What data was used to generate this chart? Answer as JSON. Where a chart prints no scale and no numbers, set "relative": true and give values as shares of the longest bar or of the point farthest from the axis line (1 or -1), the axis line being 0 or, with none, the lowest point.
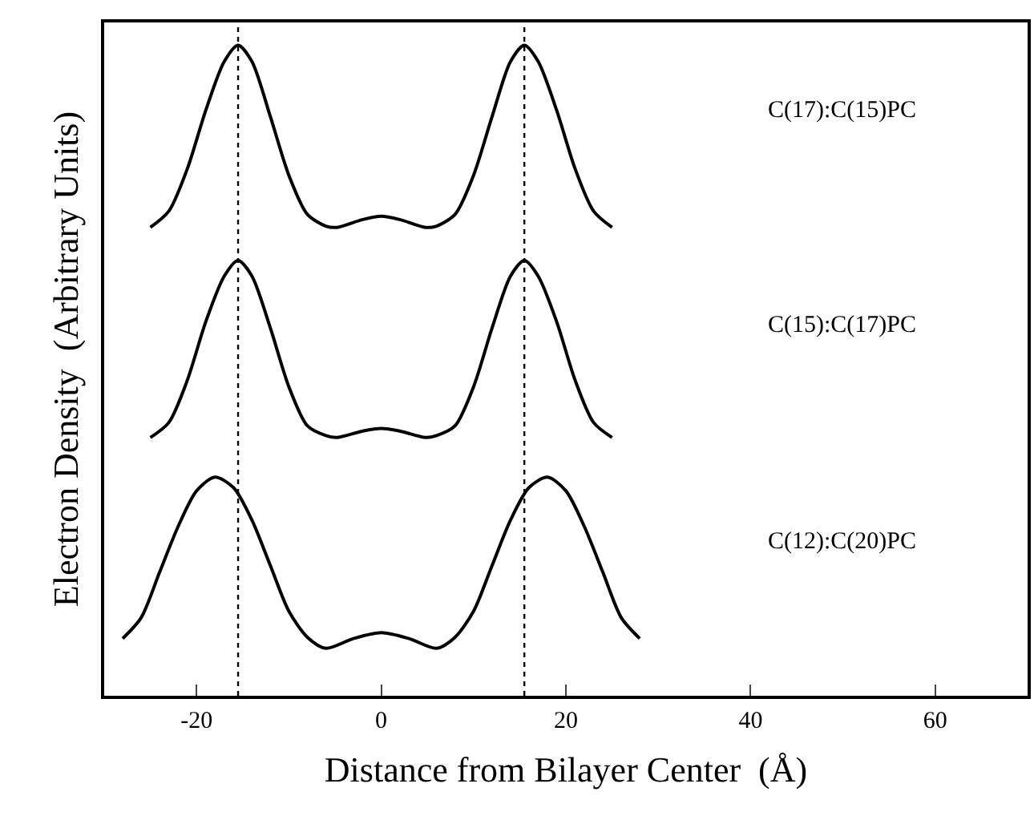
{
  "chart_data": {
    "type": "line",
    "relative": true,
    "xlabel": "Distance from Bilayer Center  (Å)",
    "ylabel": "Electron Density  (Arbitrary Units)",
    "xlim": [
      -30,
      70
    ],
    "xticks": [
      -20,
      0,
      20,
      40,
      60
    ],
    "legend": false,
    "marker": "none",
    "line_style": "solid",
    "ref_lines": [
      {
        "axis": "x",
        "value": -15.5,
        "color": "#000000",
        "line_style": "dotted"
      },
      {
        "axis": "x",
        "value": 15.5,
        "color": "#000000",
        "line_style": "dotted"
      }
    ],
    "series": [
      {
        "name": "C(17):C(15)PC",
        "color": "#000000",
        "x": [
          -25,
          -23,
          -21,
          -19,
          -17,
          -15.5,
          -14,
          -12,
          -10,
          -8,
          -6,
          -4.8,
          -2,
          0,
          2,
          4.8,
          6,
          8,
          10,
          12,
          14,
          15.5,
          17,
          19,
          21,
          23,
          25
        ],
        "values": [
          0.72,
          0.745,
          0.81,
          0.9,
          0.975,
          1.0,
          0.975,
          0.89,
          0.8,
          0.74,
          0.722,
          0.72,
          0.732,
          0.737,
          0.732,
          0.72,
          0.722,
          0.74,
          0.8,
          0.89,
          0.975,
          1.0,
          0.975,
          0.9,
          0.81,
          0.745,
          0.72
        ]
      },
      {
        "name": "C(15):C(17)PC",
        "color": "#000000",
        "x": [
          -25,
          -23,
          -21,
          -19,
          -17,
          -15.5,
          -14,
          -12,
          -10,
          -8,
          -6,
          -4.8,
          -2,
          0,
          2,
          4.8,
          6,
          8,
          10,
          12,
          14,
          15.5,
          17,
          19,
          21,
          23,
          25
        ],
        "values": [
          0.397,
          0.42,
          0.485,
          0.575,
          0.645,
          0.669,
          0.645,
          0.565,
          0.475,
          0.415,
          0.4,
          0.397,
          0.407,
          0.411,
          0.407,
          0.397,
          0.4,
          0.415,
          0.475,
          0.565,
          0.645,
          0.669,
          0.645,
          0.575,
          0.485,
          0.42,
          0.397
        ]
      },
      {
        "name": "C(12):C(20)PC",
        "color": "#000000",
        "x": [
          -28,
          -26,
          -24,
          -22,
          -20,
          -18,
          -16,
          -14,
          -12,
          -10,
          -8,
          -6,
          -3,
          0,
          3,
          6,
          8,
          10,
          12,
          14,
          16,
          18,
          20,
          22,
          24,
          26,
          28
        ],
        "values": [
          0.088,
          0.12,
          0.19,
          0.26,
          0.315,
          0.336,
          0.32,
          0.27,
          0.2,
          0.13,
          0.09,
          0.073,
          0.088,
          0.097,
          0.088,
          0.073,
          0.09,
          0.13,
          0.2,
          0.27,
          0.32,
          0.336,
          0.315,
          0.26,
          0.19,
          0.12,
          0.088
        ]
      }
    ]
  }
}
